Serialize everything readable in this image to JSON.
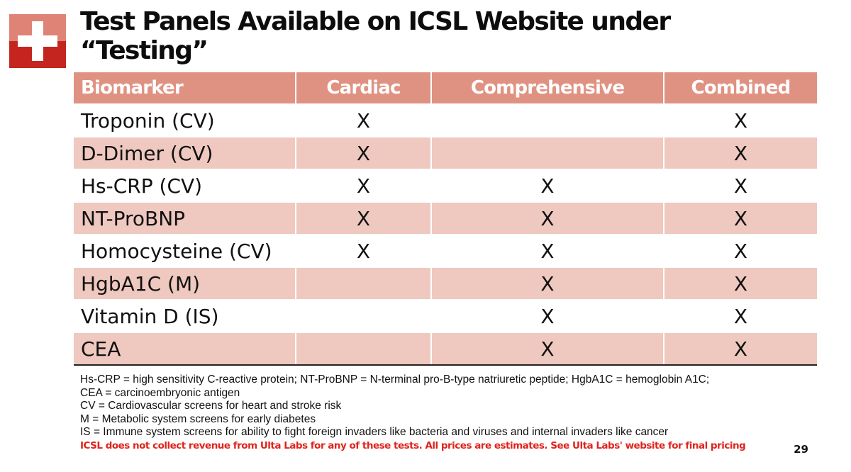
{
  "title": "Test Panels Available on ICSL Website under “Testing”",
  "colors": {
    "header_bg": "#e09282",
    "row_alt_bg": "#efc8bf",
    "logo_top": "#de8376",
    "logo_bottom": "#c4261f",
    "disclaimer": "#e0241c"
  },
  "logo_icon": "red-cross-icon",
  "table": {
    "headers": [
      "Biomarker",
      "Cardiac",
      "Comprehensive",
      "Combined"
    ],
    "rows": [
      {
        "biomarker": "Troponin (CV)",
        "cardiac": "X",
        "comprehensive": "",
        "combined": "X"
      },
      {
        "biomarker": "D-Dimer (CV)",
        "cardiac": "X",
        "comprehensive": "",
        "combined": "X"
      },
      {
        "biomarker": "Hs-CRP (CV)",
        "cardiac": "X",
        "comprehensive": "X",
        "combined": "X"
      },
      {
        "biomarker": "NT-ProBNP",
        "cardiac": "X",
        "comprehensive": "X",
        "combined": "X"
      },
      {
        "biomarker": "Homocysteine (CV)",
        "cardiac": "X",
        "comprehensive": "X",
        "combined": "X"
      },
      {
        "biomarker": "HgbA1C (M)",
        "cardiac": "",
        "comprehensive": "X",
        "combined": "X"
      },
      {
        "biomarker": "Vitamin D (IS)",
        "cardiac": "",
        "comprehensive": "X",
        "combined": "X"
      },
      {
        "biomarker": "CEA",
        "cardiac": "",
        "comprehensive": "X",
        "combined": "X"
      }
    ]
  },
  "footnotes": [
    "Hs-CRP = high sensitivity C-reactive protein; NT-ProBNP = N-terminal pro-B-type natriuretic peptide; HgbA1C =  hemoglobin A1C;",
    "CEA = carcinoembryonic antigen",
    "CV = Cardiovascular screens for heart and stroke risk",
    "M  = Metabolic system screens for early diabetes",
    "IS  = Immune system screens for ability to fight foreign invaders like bacteria and viruses and internal invaders like cancer"
  ],
  "disclaimer": "ICSL does not collect revenue from Ulta Labs for any of these tests. All prices are estimates. See Ulta Labs' website for final pricing",
  "page_number": "29"
}
